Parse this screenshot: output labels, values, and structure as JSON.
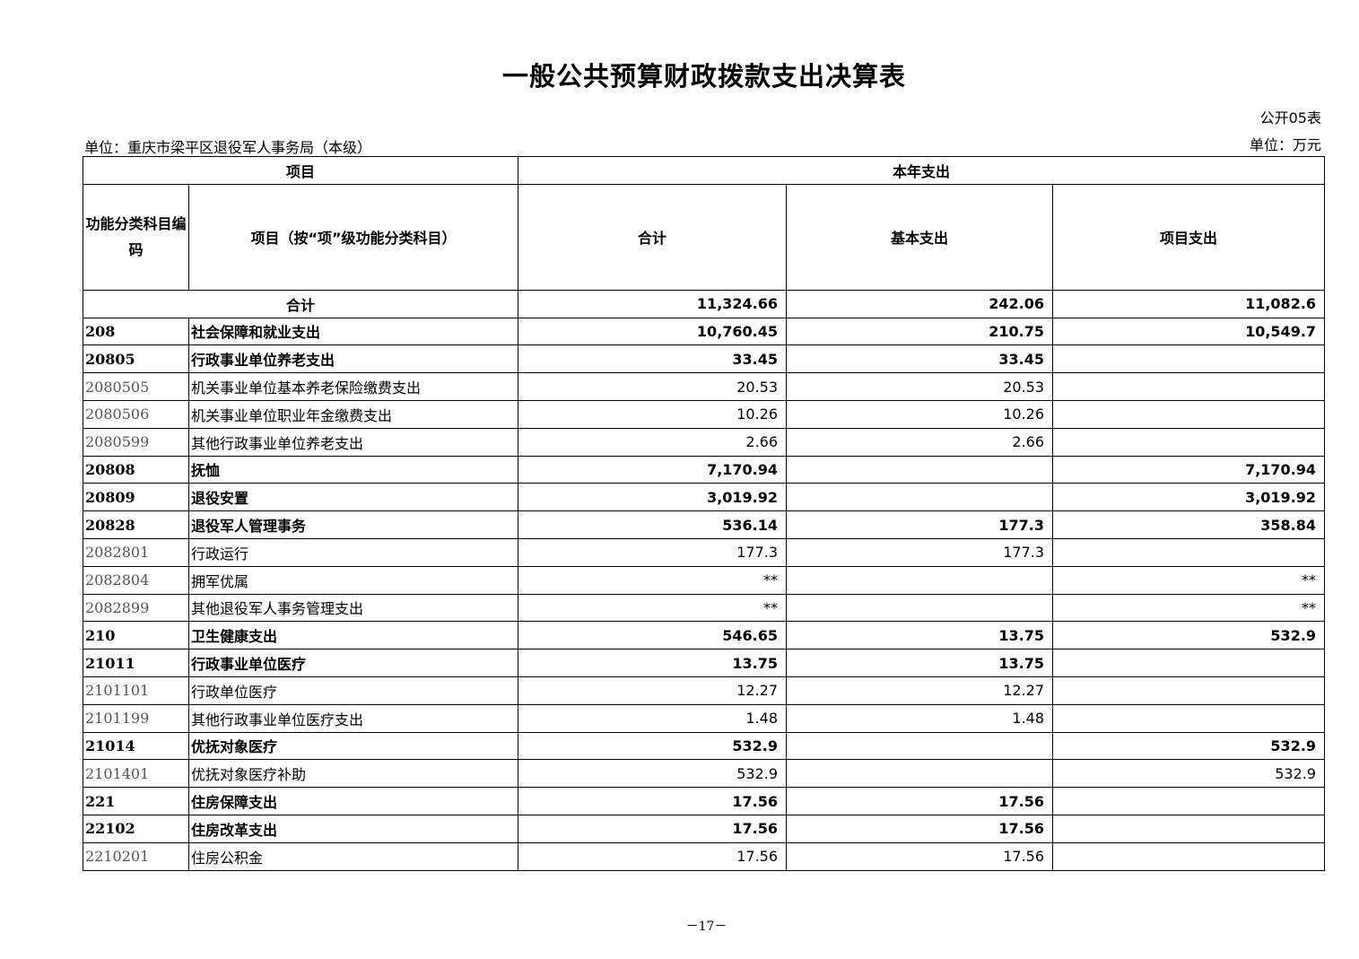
{
  "title": "一般公共预算财政拨款支出决算表",
  "table_no": "公开05表",
  "unit_org": "单位：重庆市梁平区退役军人事务局（本级）",
  "unit_money": "单位：万元",
  "header": {
    "item": "项目",
    "current_year": "本年支出",
    "code": "功能分类科目编码",
    "item_detail": "项目（按“项”级功能分类科目）",
    "total": "合计",
    "basic": "基本支出",
    "project": "项目支出"
  },
  "total_row": {
    "label": "合计",
    "total": "11,324.66",
    "basic": "242.06",
    "project": "11,082.6"
  },
  "rows": [
    {
      "code": "208",
      "name": "社会保障和就业支出",
      "total": "10,760.45",
      "basic": "210.75",
      "project": "10,549.7",
      "bold": true
    },
    {
      "code": "20805",
      "name": "行政事业单位养老支出",
      "total": "33.45",
      "basic": "33.45",
      "project": "",
      "bold": true
    },
    {
      "code": "2080505",
      "name": "机关事业单位基本养老保险缴费支出",
      "total": "20.53",
      "basic": "20.53",
      "project": "",
      "bold": false
    },
    {
      "code": "2080506",
      "name": "机关事业单位职业年金缴费支出",
      "total": "10.26",
      "basic": "10.26",
      "project": "",
      "bold": false
    },
    {
      "code": "2080599",
      "name": "其他行政事业单位养老支出",
      "total": "2.66",
      "basic": "2.66",
      "project": "",
      "bold": false
    },
    {
      "code": "20808",
      "name": "抚恤",
      "total": "7,170.94",
      "basic": "",
      "project": "7,170.94",
      "bold": true
    },
    {
      "code": "20809",
      "name": "退役安置",
      "total": "3,019.92",
      "basic": "",
      "project": "3,019.92",
      "bold": true
    },
    {
      "code": "20828",
      "name": "退役军人管理事务",
      "total": "536.14",
      "basic": "177.3",
      "project": "358.84",
      "bold": true
    },
    {
      "code": "2082801",
      "name": "行政运行",
      "total": "177.3",
      "basic": "177.3",
      "project": "",
      "bold": false
    },
    {
      "code": "2082804",
      "name": "拥军优属",
      "total": "**",
      "basic": "",
      "project": "**",
      "bold": false
    },
    {
      "code": "2082899",
      "name": "其他退役军人事务管理支出",
      "total": "**",
      "basic": "",
      "project": "**",
      "bold": false
    },
    {
      "code": "210",
      "name": "卫生健康支出",
      "total": "546.65",
      "basic": "13.75",
      "project": "532.9",
      "bold": true
    },
    {
      "code": "21011",
      "name": "行政事业单位医疗",
      "total": "13.75",
      "basic": "13.75",
      "project": "",
      "bold": true
    },
    {
      "code": "2101101",
      "name": "行政单位医疗",
      "total": "12.27",
      "basic": "12.27",
      "project": "",
      "bold": false
    },
    {
      "code": "2101199",
      "name": "其他行政事业单位医疗支出",
      "total": "1.48",
      "basic": "1.48",
      "project": "",
      "bold": false
    },
    {
      "code": "21014",
      "name": "优抚对象医疗",
      "total": "532.9",
      "basic": "",
      "project": "532.9",
      "bold": true
    },
    {
      "code": "2101401",
      "name": "优抚对象医疗补助",
      "total": "532.9",
      "basic": "",
      "project": "532.9",
      "bold": false
    },
    {
      "code": "221",
      "name": "住房保障支出",
      "total": "17.56",
      "basic": "17.56",
      "project": "",
      "bold": true
    },
    {
      "code": "22102",
      "name": "住房改革支出",
      "total": "17.56",
      "basic": "17.56",
      "project": "",
      "bold": true
    },
    {
      "code": "2210201",
      "name": "住房公积金",
      "total": "17.56",
      "basic": "17.56",
      "project": "",
      "bold": false
    }
  ],
  "page_number": "－17－"
}
